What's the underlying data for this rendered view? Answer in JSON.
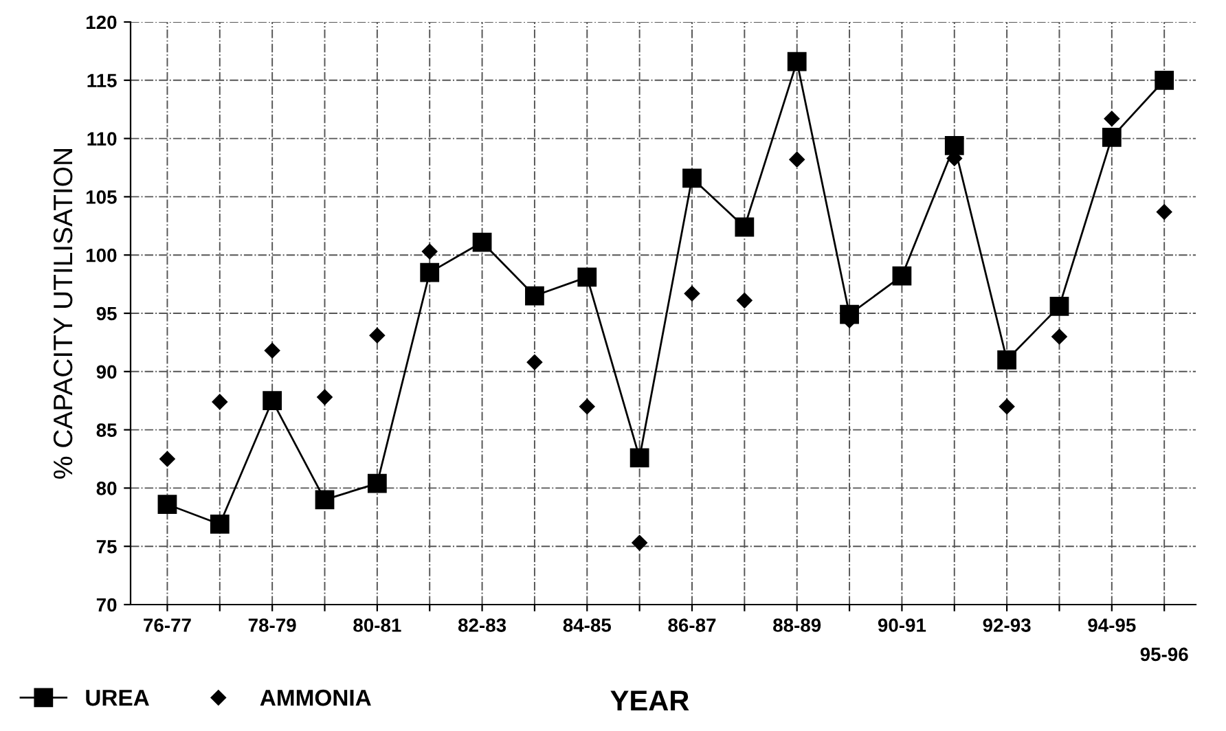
{
  "chart_data": {
    "type": "line",
    "ylabel": "% CAPACITY UTILISATION",
    "xlabel": "YEAR",
    "categories": [
      "76-77",
      null,
      "78-79",
      null,
      "80-81",
      null,
      "82-83",
      null,
      "84-85",
      null,
      "86-87",
      null,
      "88-89",
      null,
      "90-91",
      null,
      "92-93",
      null,
      "94-95",
      "95-96"
    ],
    "series": [
      {
        "name": "UREA",
        "color": "#000000",
        "marker": "square",
        "line_style": "solid",
        "values": [
          78.6,
          76.9,
          87.5,
          79.0,
          80.4,
          98.5,
          101.1,
          96.5,
          98.1,
          82.6,
          106.6,
          102.4,
          116.6,
          94.9,
          98.2,
          109.4,
          91.0,
          95.6,
          110.1,
          115.0
        ]
      },
      {
        "name": "AMMONIA",
        "type": "scatter",
        "color": "#000000",
        "marker": "diamond",
        "values": [
          82.5,
          87.4,
          91.8,
          87.8,
          93.1,
          100.3,
          null,
          90.8,
          87.0,
          75.3,
          96.7,
          96.1,
          108.2,
          94.4,
          null,
          108.3,
          87.0,
          93.0,
          111.7,
          103.7
        ]
      }
    ],
    "ylim": [
      70,
      120
    ],
    "yticks": [
      70,
      75,
      80,
      85,
      90,
      95,
      100,
      105,
      110,
      115,
      120
    ],
    "grid": true,
    "legend": "bottom left"
  }
}
